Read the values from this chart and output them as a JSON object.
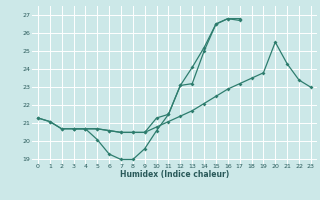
{
  "xlabel": "Humidex (Indice chaleur)",
  "bg_color": "#cce8e8",
  "grid_color": "#ffffff",
  "line_color": "#2e7d6e",
  "xlim": [
    -0.5,
    23.5
  ],
  "ylim": [
    18.75,
    27.5
  ],
  "xticks": [
    0,
    1,
    2,
    3,
    4,
    5,
    6,
    7,
    8,
    9,
    10,
    11,
    12,
    13,
    14,
    15,
    16,
    17,
    18,
    19,
    20,
    21,
    22,
    23
  ],
  "yticks": [
    19,
    20,
    21,
    22,
    23,
    24,
    25,
    26,
    27
  ],
  "line1_x": [
    0,
    1,
    2,
    3,
    4,
    5,
    6,
    7,
    8,
    9,
    10,
    11,
    12,
    13,
    14,
    15,
    16,
    17
  ],
  "line1_y": [
    21.3,
    21.1,
    20.7,
    20.7,
    20.7,
    20.1,
    19.3,
    19.0,
    19.0,
    19.6,
    20.6,
    21.5,
    23.1,
    24.1,
    25.2,
    26.5,
    26.8,
    26.7
  ],
  "line2_x": [
    0,
    1,
    2,
    3,
    4,
    5,
    6,
    7,
    8,
    9,
    10,
    11,
    12,
    13,
    14,
    15,
    16,
    17
  ],
  "line2_y": [
    21.3,
    21.1,
    20.7,
    20.7,
    20.7,
    20.7,
    20.6,
    20.5,
    20.5,
    20.5,
    21.3,
    21.5,
    23.1,
    23.2,
    25.0,
    26.5,
    26.8,
    26.8
  ],
  "line3_x": [
    3,
    4,
    5,
    6,
    7,
    8,
    9,
    10,
    11,
    12,
    13,
    14,
    15,
    16,
    17,
    18,
    19,
    20,
    21,
    22,
    23
  ],
  "line3_y": [
    20.7,
    20.7,
    20.7,
    20.6,
    20.5,
    20.5,
    20.5,
    20.8,
    21.1,
    21.4,
    21.7,
    22.1,
    22.5,
    22.9,
    23.2,
    23.5,
    23.8,
    25.5,
    24.3,
    23.4,
    23.0
  ]
}
